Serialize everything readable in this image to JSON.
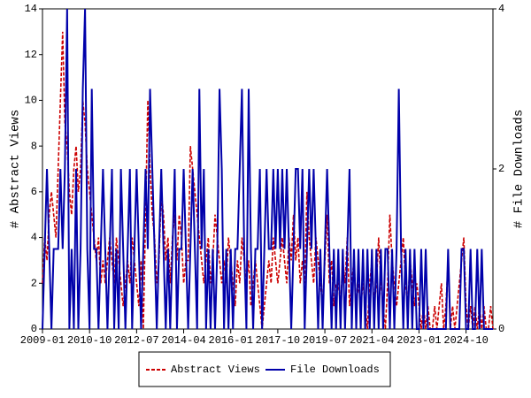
{
  "chart_data": {
    "type": "line",
    "y_label": "# Abstract Views",
    "y2_label": "# File Downloads",
    "categories": [
      "2009-01",
      "2009-02",
      "2009-03",
      "2009-04",
      "2009-05",
      "2009-06",
      "2009-07",
      "2009-08",
      "2009-09",
      "2009-10",
      "2009-11",
      "2009-12",
      "2010-01",
      "2010-02",
      "2010-03",
      "2010-04",
      "2010-05",
      "2010-06",
      "2010-07",
      "2010-08",
      "2010-09",
      "2010-10",
      "2010-11",
      "2010-12",
      "2011-01",
      "2011-02",
      "2011-03",
      "2011-04",
      "2011-05",
      "2011-06",
      "2011-07",
      "2011-08",
      "2011-09",
      "2011-10",
      "2011-11",
      "2011-12",
      "2012-01",
      "2012-02",
      "2012-03",
      "2012-04",
      "2012-05",
      "2012-06",
      "2012-07",
      "2012-08",
      "2012-09",
      "2012-10",
      "2012-11",
      "2012-12",
      "2013-01",
      "2013-02",
      "2013-03",
      "2013-04",
      "2013-05",
      "2013-06",
      "2013-07",
      "2013-08",
      "2013-09",
      "2013-10",
      "2013-11",
      "2013-12",
      "2014-01",
      "2014-02",
      "2014-03",
      "2014-04",
      "2014-05",
      "2014-06",
      "2014-07",
      "2014-08",
      "2014-09",
      "2014-10",
      "2014-11",
      "2014-12",
      "2015-01",
      "2015-02",
      "2015-03",
      "2015-04",
      "2015-05",
      "2015-06",
      "2015-07",
      "2015-08",
      "2015-09",
      "2015-10",
      "2015-11",
      "2015-12",
      "2016-01",
      "2016-02",
      "2016-03",
      "2016-04",
      "2016-05",
      "2016-06",
      "2016-07",
      "2016-08",
      "2016-09",
      "2016-10",
      "2016-11",
      "2016-12",
      "2017-01",
      "2017-02",
      "2017-03",
      "2017-04",
      "2017-05",
      "2017-06",
      "2017-07",
      "2017-08",
      "2017-09",
      "2017-10",
      "2017-11",
      "2017-12",
      "2018-01",
      "2018-02",
      "2018-03",
      "2018-04",
      "2018-05",
      "2018-06",
      "2018-07",
      "2018-08",
      "2018-09",
      "2018-10",
      "2018-11",
      "2018-12",
      "2019-01",
      "2019-02",
      "2019-03",
      "2019-04",
      "2019-05",
      "2019-06",
      "2019-07",
      "2019-08",
      "2019-09",
      "2019-10",
      "2019-11",
      "2019-12",
      "2020-01",
      "2020-02",
      "2020-03",
      "2020-04",
      "2020-05",
      "2020-06",
      "2020-07",
      "2020-08",
      "2020-09",
      "2020-10",
      "2020-11",
      "2020-12",
      "2021-01",
      "2021-02",
      "2021-03",
      "2021-04",
      "2021-05",
      "2021-06",
      "2021-07",
      "2021-08",
      "2021-09",
      "2021-10",
      "2021-11",
      "2021-12",
      "2022-01",
      "2022-02",
      "2022-03",
      "2022-04",
      "2022-05",
      "2022-06",
      "2022-07",
      "2022-08",
      "2022-09",
      "2022-10",
      "2022-11",
      "2022-12",
      "2023-01",
      "2023-02",
      "2023-03",
      "2023-04",
      "2023-05",
      "2023-06",
      "2023-07",
      "2023-08",
      "2023-09",
      "2023-10",
      "2023-11",
      "2023-12",
      "2024-01",
      "2024-02",
      "2024-03",
      "2024-04",
      "2024-05",
      "2024-06",
      "2024-07",
      "2024-08",
      "2024-09",
      "2024-10",
      "2024-11",
      "2024-12",
      "2025-01",
      "2025-02",
      "2025-03",
      "2025-04",
      "2025-05",
      "2025-06",
      "2025-07",
      "2025-08",
      "2025-09",
      "2025-10"
    ],
    "xticks": [
      "2009-01",
      "2010-10",
      "2012-07",
      "2014-04",
      "2016-01",
      "2017-10",
      "2019-07",
      "2021-04",
      "2023-01",
      "2024-10"
    ],
    "series": [
      {
        "name": "Abstract Views",
        "color": "#cc0000",
        "dash": true,
        "values": [
          2,
          4,
          3,
          5,
          6,
          5,
          4,
          7,
          10,
          13,
          9,
          8,
          6,
          5,
          7,
          8,
          6,
          7,
          10,
          9,
          7,
          6,
          5,
          4,
          3,
          4,
          2,
          3,
          2,
          3,
          4,
          3,
          2,
          4,
          3,
          2,
          1,
          2,
          3,
          2,
          4,
          3,
          2,
          1,
          3,
          0,
          5,
          10,
          7,
          5,
          4,
          2,
          3,
          6,
          5,
          3,
          4,
          2,
          4,
          5,
          3,
          5,
          4,
          2,
          3,
          3,
          8,
          7,
          6,
          5,
          4,
          3,
          2,
          3,
          4,
          2,
          3,
          5,
          4,
          3,
          2,
          3,
          2,
          4,
          3,
          2,
          1,
          3,
          2,
          4,
          3,
          2,
          3,
          1,
          2,
          3,
          2,
          1,
          0,
          1,
          2,
          3,
          2,
          4,
          3,
          2,
          3,
          4,
          3,
          2,
          4,
          3,
          5,
          3,
          4,
          2,
          3,
          2,
          6,
          4,
          3,
          2,
          4,
          3,
          2,
          1,
          3,
          5,
          2,
          3,
          1,
          2,
          2,
          1,
          3,
          2,
          4,
          1,
          2,
          3,
          1,
          2,
          1,
          2,
          1,
          0,
          2,
          3,
          1,
          2,
          4,
          2,
          1,
          0,
          2,
          5,
          3,
          2,
          1,
          2,
          3,
          4,
          2,
          1,
          3,
          2,
          1,
          2,
          1,
          0,
          1,
          0,
          1,
          0,
          0,
          1,
          0,
          1,
          2,
          0,
          1,
          3,
          0,
          1,
          0,
          1,
          2,
          3,
          4,
          1,
          0,
          1,
          0,
          1,
          0,
          1,
          0,
          1,
          0,
          0,
          1,
          0
        ]
      },
      {
        "name": "File Downloads",
        "color": "#0000aa",
        "axis": "y2",
        "values": [
          0,
          1,
          2,
          1,
          0,
          1,
          1,
          1,
          2,
          1,
          2,
          4,
          0,
          1,
          0,
          2,
          0,
          1,
          3,
          4,
          1,
          0,
          3,
          1,
          1,
          0,
          1,
          2,
          1,
          0,
          1,
          2,
          0,
          1,
          0,
          2,
          1,
          0,
          1,
          2,
          0,
          1,
          2,
          1,
          0,
          1,
          2,
          1,
          3,
          2,
          1,
          0,
          1,
          2,
          1,
          0,
          1,
          0,
          1,
          2,
          0,
          1,
          1,
          2,
          1,
          0,
          1,
          2,
          1,
          0,
          3,
          1,
          2,
          0,
          1,
          0,
          1,
          0,
          1,
          3,
          2,
          0,
          1,
          0,
          1,
          0,
          1,
          1,
          2,
          3,
          1,
          0,
          3,
          1,
          0,
          1,
          1,
          2,
          0,
          1,
          2,
          1,
          1,
          2,
          1,
          2,
          1,
          2,
          1,
          2,
          1,
          0,
          1,
          2,
          2,
          1,
          2,
          0,
          1,
          2,
          1,
          2,
          1,
          0,
          1,
          0,
          1,
          2,
          1,
          0,
          1,
          0,
          1,
          0,
          1,
          0,
          1,
          2,
          0,
          1,
          0,
          1,
          0,
          1,
          0,
          1,
          0,
          1,
          0,
          1,
          0,
          1,
          0,
          1,
          1,
          0,
          1,
          0,
          1,
          3,
          1,
          0,
          1,
          0,
          1,
          0,
          1,
          0,
          0,
          1,
          0,
          1,
          0,
          0,
          0,
          0,
          0,
          0,
          0,
          0,
          0,
          1,
          0,
          0,
          0,
          0,
          0,
          1,
          1,
          0,
          0,
          1,
          0,
          0,
          1,
          0,
          1,
          0,
          0,
          0,
          0,
          0
        ]
      }
    ],
    "ylim": [
      0,
      14
    ],
    "yticks": [
      0,
      2,
      4,
      6,
      8,
      10,
      12,
      14
    ],
    "y2lim": [
      0,
      4
    ],
    "y2ticks": [
      0,
      2,
      4
    ],
    "legend": "bottom"
  }
}
